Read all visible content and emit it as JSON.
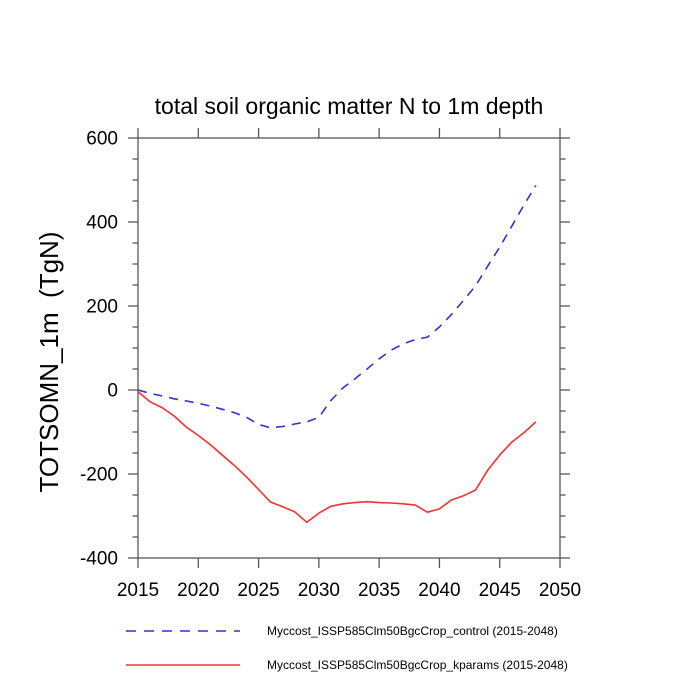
{
  "window": {
    "background": "#ffffff"
  },
  "chart_data": {
    "type": "line",
    "title": "total soil organic matter N to 1m depth",
    "xlabel": "",
    "ylabel": "TOTSOMN_1m  (TgN)",
    "xlim": [
      2015,
      2050
    ],
    "ylim": [
      -400,
      600
    ],
    "x_tick_step": 5,
    "y_tick_step": 200,
    "y_minor_tick_step": 50,
    "x_tick_labels": [
      "2015",
      "2020",
      "2025",
      "2030",
      "2035",
      "2040",
      "2045",
      "2050"
    ],
    "y_tick_labels": [
      "-400",
      "-200",
      "0",
      "200",
      "400",
      "600"
    ],
    "grid": false,
    "legend_position": "bottom-left",
    "axis_color": "#575757",
    "text_color": "#000000",
    "x": [
      2015,
      2016,
      2017,
      2018,
      2019,
      2020,
      2021,
      2022,
      2023,
      2024,
      2025,
      2026,
      2027,
      2028,
      2029,
      2030,
      2031,
      2032,
      2033,
      2034,
      2035,
      2036,
      2037,
      2038,
      2039,
      2040,
      2041,
      2042,
      2043,
      2044,
      2045,
      2046,
      2047,
      2048
    ],
    "series": [
      {
        "name": "Myccost_ISSP585Clm50BgcCrop_control (2015-2048)",
        "color": "#3232d8",
        "line_style": "dashed",
        "values": [
          0,
          -8,
          -14,
          -21,
          -26,
          -32,
          -38,
          -46,
          -54,
          -65,
          -82,
          -90,
          -87,
          -81,
          -76,
          -65,
          -25,
          5,
          27,
          50,
          74,
          95,
          110,
          120,
          126,
          150,
          180,
          213,
          248,
          295,
          340,
          390,
          440,
          487
        ]
      },
      {
        "name": "Myccost_ISSP585Clm50BgcCrop_kparams (2015-2048)",
        "color": "#f73030",
        "line_style": "solid",
        "values": [
          -4,
          -28,
          -42,
          -62,
          -88,
          -108,
          -130,
          -155,
          -180,
          -207,
          -237,
          -267,
          -278,
          -290,
          -315,
          -293,
          -277,
          -271,
          -268,
          -266,
          -268,
          -269,
          -271,
          -274,
          -291,
          -283,
          -262,
          -252,
          -238,
          -191,
          -155,
          -124,
          -102,
          -76
        ]
      }
    ]
  }
}
